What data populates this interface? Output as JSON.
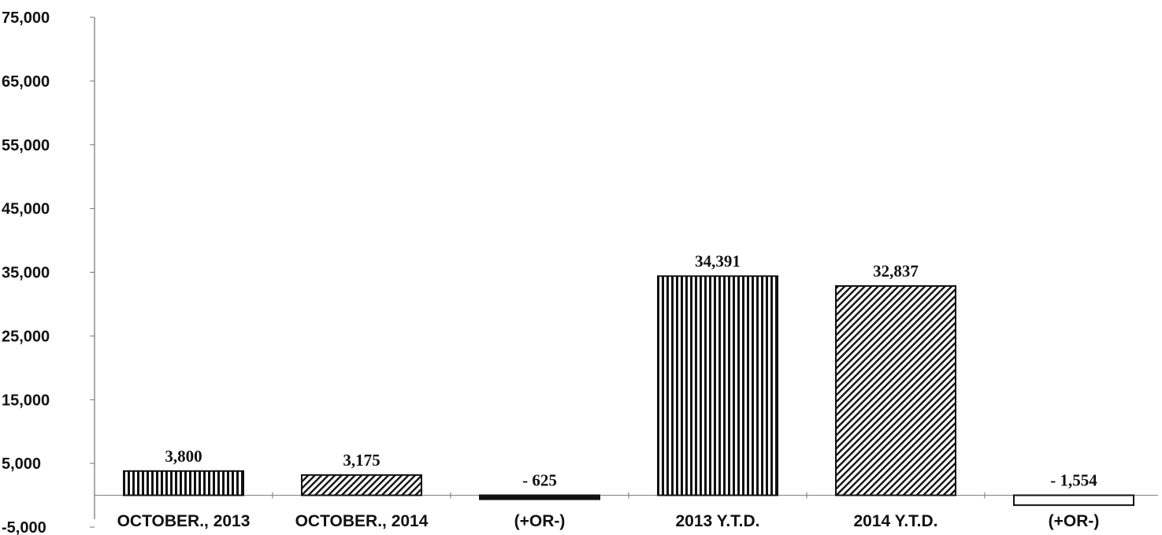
{
  "chart_data": {
    "type": "bar",
    "title": "",
    "xlabel": "",
    "ylabel": "",
    "categories": [
      "OCTOBER., 2013",
      "OCTOBER., 2014",
      "(+OR-)",
      "2013 Y.T.D.",
      "2014 Y.T.D.",
      "(+OR-)"
    ],
    "values": [
      3800,
      3175,
      -625,
      34391,
      32837,
      -1554
    ],
    "data_labels": [
      "3,800",
      "3,175",
      "- 625",
      "34,391",
      "32,837",
      "- 1,554"
    ],
    "patterns": [
      "vertical",
      "diagonal",
      "solid",
      "vertical",
      "diagonal",
      "hollow"
    ],
    "ylim": [
      -5000,
      75000
    ],
    "yticks": [
      -5000,
      5000,
      15000,
      25000,
      35000,
      45000,
      55000,
      65000,
      75000
    ],
    "ytick_labels": [
      "-5,000",
      "5,000",
      "15,000",
      "25,000",
      "35,000",
      "45,000",
      "55,000",
      "65,000",
      "75,000"
    ],
    "grid": false,
    "legend": "none"
  }
}
